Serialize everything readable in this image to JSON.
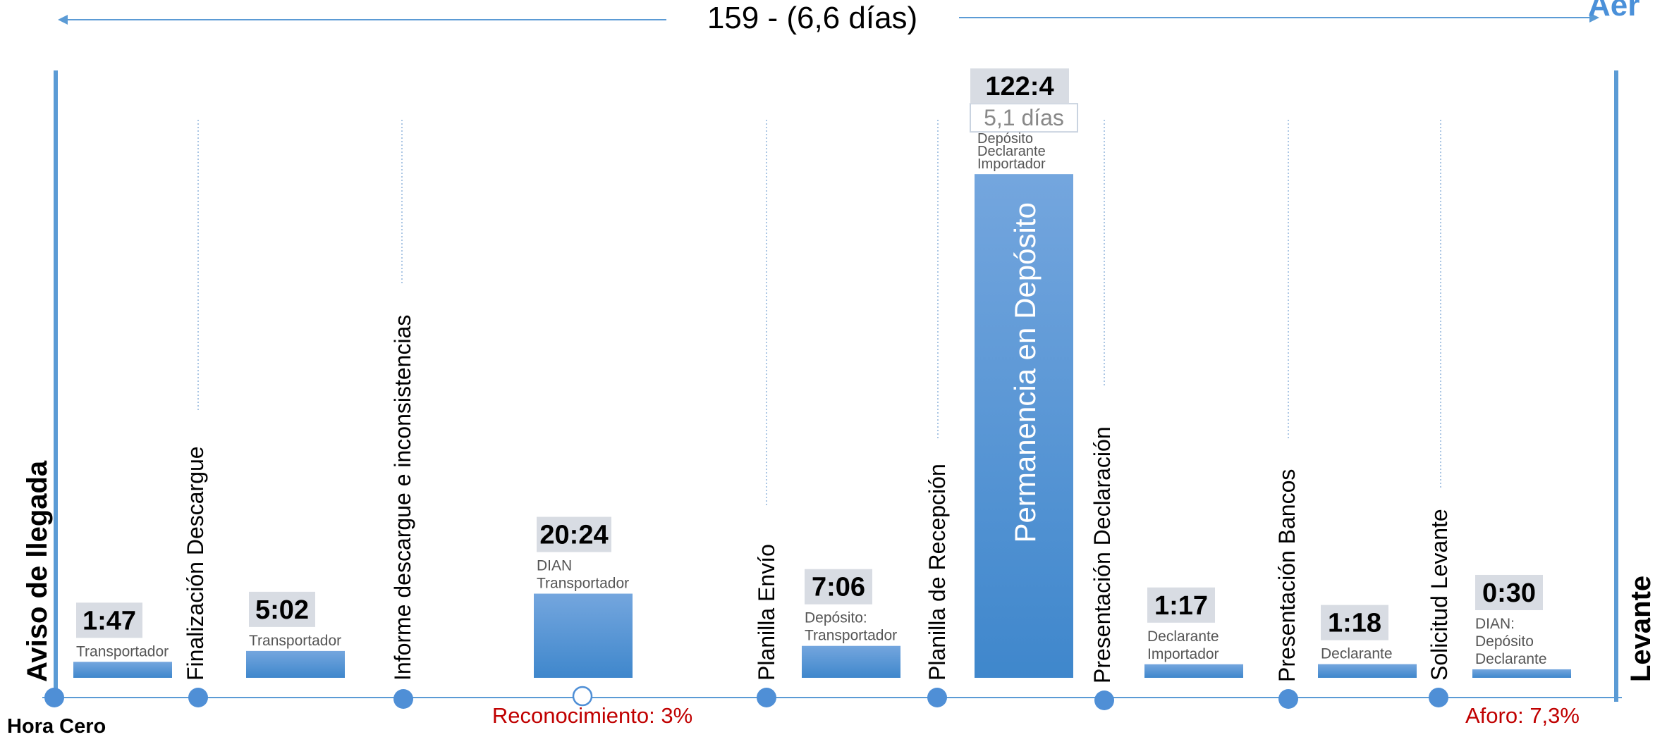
{
  "header": {
    "total_label": "159 - (6,6 días)",
    "corner_label": "Aer"
  },
  "side_labels": {
    "left": "Aviso de llegada",
    "right": "Levante",
    "origin": "Hora Cero"
  },
  "colors": {
    "bar_top": "#74a6de",
    "bar_bottom": "#3f87cc",
    "axis": "#5b9bd5",
    "value_box": "#d8dce3",
    "annotation_red": "#c00000",
    "text_dark": "#000000",
    "text_gray": "#555555"
  },
  "milestones": [
    {
      "label": "Finalización Descargue"
    },
    {
      "label": "Informe descargue e inconsistencias"
    },
    {
      "label": "Planilla Envío"
    },
    {
      "label": "Planilla de Recepción"
    },
    {
      "label": "Presentación Declaración"
    },
    {
      "label": "Presentación Bancos"
    },
    {
      "label": "Solicitud Levante"
    }
  ],
  "annotations": {
    "reconocimiento": "Reconocimiento: 3%",
    "aforo": "Aforo: 7,3%"
  },
  "chart_data": {
    "type": "bar",
    "title": "159 - (6,6 días)",
    "value_unit": "hours",
    "ylim": [
      0,
      125
    ],
    "grid": false,
    "legend": "none",
    "categories": [
      "1:47",
      "5:02",
      "20:24",
      "7:06",
      "122:4",
      "1:17",
      "1:18",
      "0:30"
    ],
    "values": [
      1.78,
      5.03,
      20.4,
      7.1,
      122.07,
      1.28,
      1.3,
      0.5
    ],
    "bars": [
      {
        "value_label": "1:47",
        "value": 1.78,
        "actors": [
          "Transportador"
        ]
      },
      {
        "value_label": "5:02",
        "value": 5.03,
        "actors": [
          "Transportador"
        ]
      },
      {
        "value_label": "20:24",
        "value": 20.4,
        "actors": [
          "DIAN",
          "Transportador"
        ]
      },
      {
        "value_label": "7:06",
        "value": 7.1,
        "actors": [
          "Depósito:",
          "Transportador"
        ]
      },
      {
        "value_label": "122:4",
        "value": 122.07,
        "sub_label": "5,1 días",
        "inner_label": "Permanencia en Depósito",
        "actors": [
          "Depósito",
          "Declarante",
          "Importador"
        ]
      },
      {
        "value_label": "1:17",
        "value": 1.28,
        "actors": [
          "Declarante",
          "Importador"
        ]
      },
      {
        "value_label": "1:18",
        "value": 1.3,
        "actors": [
          "Declarante"
        ]
      },
      {
        "value_label": "0:30",
        "value": 0.5,
        "actors": [
          "DIAN:",
          "Depósito",
          "Declarante"
        ]
      }
    ]
  }
}
